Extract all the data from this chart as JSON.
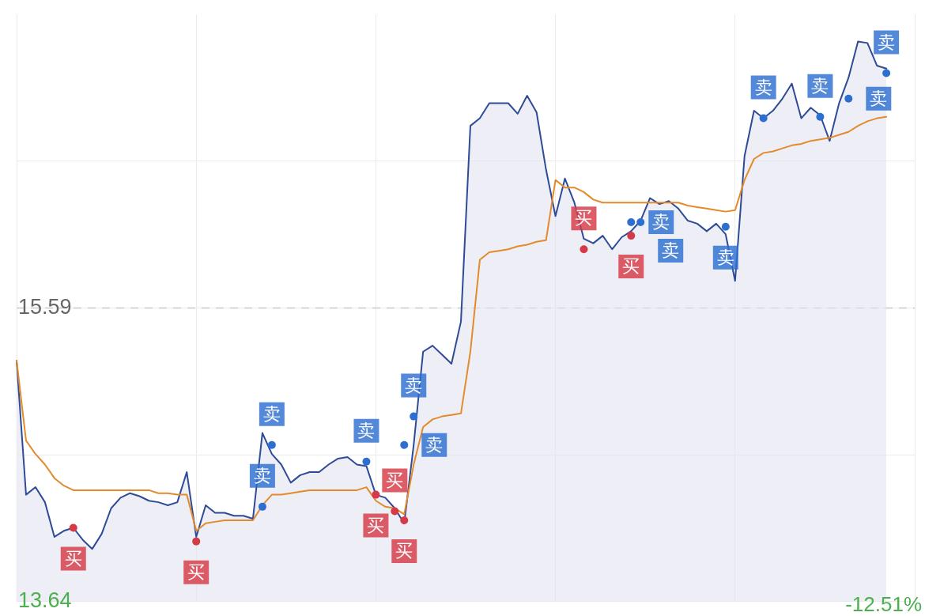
{
  "chart_data": {
    "type": "area",
    "categories": [
      null,
      null,
      null,
      null,
      null,
      null,
      null,
      null,
      null,
      null,
      null,
      null,
      null,
      null,
      null,
      null,
      null,
      null,
      null,
      null,
      null,
      null,
      null,
      null,
      null,
      null,
      null,
      null,
      null,
      null,
      null,
      null,
      null,
      null,
      null,
      null,
      null,
      null,
      null,
      null,
      null,
      null,
      null,
      null,
      null,
      null,
      null,
      null,
      null,
      null,
      null,
      null,
      null,
      null,
      null,
      null,
      null,
      null,
      null,
      null,
      null,
      null,
      null,
      null,
      null,
      null,
      null,
      null,
      null,
      null,
      null,
      null,
      null,
      null,
      null,
      null,
      null,
      null,
      null,
      null,
      null,
      null,
      null,
      null,
      null,
      null,
      null,
      null,
      null,
      null,
      null,
      null,
      null,
      null,
      null,
      null
    ],
    "ylim": [
      13.64,
      17.54
    ],
    "yticks": [
      13.64,
      {
        "value": 14.615,
        "label": null
      },
      15.59,
      {
        "value": 16.565,
        "label": null
      }
    ],
    "grid": true,
    "legend": false,
    "tick_labels": "y",
    "line_style": "solid",
    "ref_lines": [
      {
        "axis": "y",
        "value": 15.59,
        "line_style": "dashed",
        "color": "#c8c8c8"
      }
    ],
    "annotations": [
      "-12.51%"
    ],
    "series": [
      {
        "color": "#2e4b97",
        "values": [
          15.24,
          14.35,
          14.4,
          14.3,
          14.07,
          14.11,
          14.13,
          14.05,
          13.99,
          14.09,
          14.26,
          14.33,
          14.36,
          14.34,
          14.31,
          14.3,
          14.28,
          14.3,
          14.5,
          14.07,
          14.28,
          14.23,
          14.23,
          14.21,
          14.21,
          14.19,
          14.76,
          14.62,
          14.55,
          14.43,
          14.48,
          14.5,
          14.5,
          14.55,
          14.59,
          14.6,
          14.55,
          14.54,
          14.35,
          14.33,
          14.26,
          14.16,
          14.68,
          15.3,
          15.34,
          15.28,
          15.22,
          15.5,
          16.8,
          16.85,
          16.95,
          16.95,
          16.95,
          16.88,
          17.0,
          16.89,
          16.51,
          16.2,
          16.45,
          16.29,
          16.05,
          16.02,
          16.07,
          15.98,
          16.06,
          16.1,
          16.17,
          16.32,
          16.28,
          16.3,
          16.25,
          16.17,
          16.15,
          16.1,
          16.15,
          16.08,
          15.77,
          16.6,
          16.9,
          16.85,
          16.9,
          16.98,
          17.08,
          16.85,
          16.92,
          16.87,
          16.7,
          16.95,
          17.12,
          17.36,
          17.35,
          17.2,
          17.18,
          null,
          null,
          null
        ]
      },
      {
        "type": "line",
        "color": "#e38b2c",
        "values": [
          15.24,
          14.71,
          14.62,
          14.55,
          14.46,
          14.41,
          14.38,
          14.38,
          14.38,
          14.38,
          14.38,
          14.38,
          14.38,
          14.38,
          14.38,
          14.36,
          14.36,
          14.35,
          14.35,
          14.11,
          14.16,
          14.17,
          14.18,
          14.18,
          14.18,
          14.18,
          14.28,
          14.35,
          14.35,
          14.36,
          14.37,
          14.38,
          14.38,
          14.38,
          14.38,
          14.38,
          14.38,
          14.4,
          14.31,
          14.27,
          14.26,
          14.22,
          14.55,
          14.8,
          14.85,
          14.87,
          14.88,
          14.89,
          15.3,
          15.91,
          15.96,
          15.97,
          15.98,
          16.0,
          16.01,
          16.03,
          16.04,
          16.44,
          16.39,
          16.39,
          16.36,
          16.31,
          16.29,
          16.29,
          16.29,
          16.29,
          16.29,
          16.29,
          16.29,
          16.29,
          16.29,
          16.27,
          16.26,
          16.25,
          16.24,
          16.23,
          16.24,
          16.44,
          16.58,
          16.62,
          16.63,
          16.65,
          16.67,
          16.68,
          16.7,
          16.71,
          16.72,
          16.74,
          16.76,
          16.8,
          16.83,
          16.85,
          16.86,
          null,
          null,
          null
        ]
      },
      {
        "type": "scatter",
        "color": "#d63a46",
        "values": [
          null,
          null,
          null,
          null,
          null,
          null,
          14.13,
          null,
          null,
          null,
          null,
          null,
          null,
          null,
          null,
          null,
          null,
          null,
          null,
          14.04,
          null,
          null,
          null,
          null,
          null,
          null,
          null,
          null,
          null,
          null,
          null,
          null,
          null,
          null,
          null,
          null,
          null,
          null,
          14.35,
          null,
          14.24,
          14.18,
          null,
          null,
          null,
          null,
          null,
          null,
          null,
          null,
          null,
          null,
          null,
          null,
          null,
          null,
          null,
          null,
          null,
          null,
          15.98,
          null,
          null,
          null,
          null,
          16.07,
          null,
          null,
          null,
          null,
          null,
          null,
          null,
          null,
          null,
          null,
          null,
          null,
          null,
          null,
          null,
          null,
          null,
          null,
          null,
          null,
          null,
          null,
          null,
          null,
          null,
          null,
          null,
          null,
          null,
          null
        ],
        "value_labels": [
          null,
          null,
          null,
          null,
          null,
          null,
          "买",
          null,
          null,
          null,
          null,
          null,
          null,
          null,
          null,
          null,
          null,
          null,
          null,
          "买",
          null,
          null,
          null,
          null,
          null,
          null,
          null,
          null,
          null,
          null,
          null,
          null,
          null,
          null,
          null,
          null,
          null,
          null,
          "买",
          null,
          "买",
          "买",
          null,
          null,
          null,
          null,
          null,
          null,
          null,
          null,
          null,
          null,
          null,
          null,
          null,
          null,
          null,
          null,
          null,
          null,
          "买",
          null,
          null,
          null,
          null,
          "买",
          null,
          null,
          null,
          null,
          null,
          null,
          null,
          null,
          null,
          null,
          null,
          null,
          null,
          null,
          null,
          null,
          null,
          null,
          null,
          null,
          null,
          null,
          null,
          null,
          null,
          null,
          null,
          null,
          null,
          null
        ]
      },
      {
        "type": "scatter",
        "color": "#2d6fd0",
        "values": [
          null,
          null,
          null,
          null,
          null,
          null,
          null,
          null,
          null,
          null,
          null,
          null,
          null,
          null,
          null,
          null,
          null,
          null,
          null,
          null,
          null,
          null,
          null,
          null,
          null,
          null,
          14.27,
          14.68,
          null,
          null,
          null,
          null,
          null,
          null,
          null,
          null,
          null,
          14.57,
          null,
          null,
          null,
          14.68,
          14.87,
          null,
          null,
          null,
          null,
          null,
          null,
          null,
          null,
          null,
          null,
          null,
          null,
          null,
          null,
          null,
          null,
          null,
          null,
          null,
          null,
          null,
          null,
          16.16,
          16.16,
          null,
          null,
          null,
          null,
          null,
          null,
          null,
          null,
          16.13,
          null,
          null,
          null,
          16.85,
          null,
          null,
          null,
          null,
          null,
          16.86,
          null,
          null,
          16.98,
          null,
          null,
          null,
          17.15,
          null,
          null,
          null
        ],
        "value_labels": [
          null,
          null,
          null,
          null,
          null,
          null,
          null,
          null,
          null,
          null,
          null,
          null,
          null,
          null,
          null,
          null,
          null,
          null,
          null,
          null,
          null,
          null,
          null,
          null,
          null,
          null,
          "卖",
          "卖",
          null,
          null,
          null,
          null,
          null,
          null,
          null,
          null,
          null,
          "卖",
          null,
          null,
          null,
          "卖",
          "卖",
          null,
          null,
          null,
          null,
          null,
          null,
          null,
          null,
          null,
          null,
          null,
          null,
          null,
          null,
          null,
          null,
          null,
          null,
          null,
          null,
          null,
          null,
          "卖",
          "卖",
          null,
          null,
          null,
          null,
          null,
          null,
          null,
          null,
          "卖",
          null,
          null,
          null,
          "卖",
          null,
          null,
          null,
          null,
          null,
          "卖",
          null,
          null,
          "卖",
          null,
          null,
          null,
          "卖",
          null,
          null,
          null
        ]
      }
    ]
  }
}
